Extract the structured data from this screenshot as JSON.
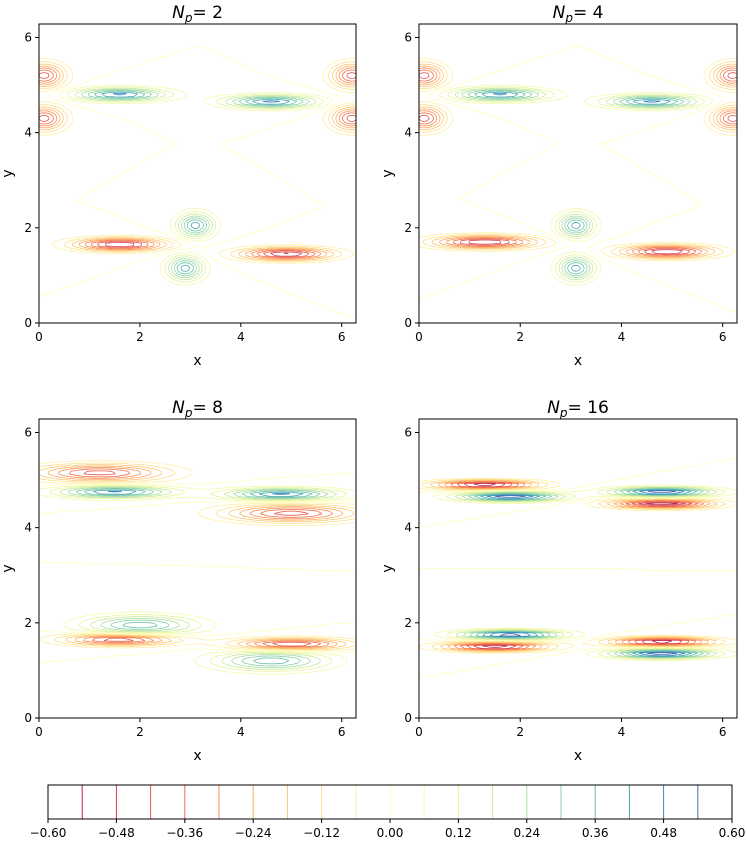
{
  "figure": {
    "colorbar": {
      "ticks": [
        "−0.60",
        "−0.48",
        "−0.36",
        "−0.24",
        "−0.12",
        "0.00",
        "0.12",
        "0.24",
        "0.36",
        "0.48",
        "0.60"
      ],
      "levels": [
        -0.54,
        -0.48,
        -0.42,
        -0.36,
        -0.3,
        -0.24,
        -0.18,
        -0.12,
        -0.06,
        0.0,
        0.06,
        0.12,
        0.18,
        0.24,
        0.3,
        0.36,
        0.42,
        0.48,
        0.54
      ],
      "colormap": "Spectral",
      "range": [
        -0.6,
        0.6
      ]
    }
  },
  "chart_data": [
    {
      "type": "contour",
      "title_base": "N",
      "title_sub": "p",
      "title_value": "= 2",
      "xlabel": "x",
      "ylabel": "y",
      "xlim": [
        0,
        6.283
      ],
      "ylim": [
        0,
        6.283
      ],
      "xticks": [
        "0",
        "2",
        "4",
        "6"
      ],
      "yticks": [
        "0",
        "2",
        "4",
        "6"
      ],
      "features": [
        {
          "x": 1.6,
          "y": 1.65,
          "amp": -0.55,
          "sx": 0.9,
          "sy": 0.13
        },
        {
          "x": 4.9,
          "y": 1.45,
          "amp": -0.55,
          "sx": 0.9,
          "sy": 0.13
        },
        {
          "x": 3.1,
          "y": 2.05,
          "amp": 0.45,
          "sx": 0.35,
          "sy": 0.25
        },
        {
          "x": 2.9,
          "y": 1.15,
          "amp": 0.45,
          "sx": 0.35,
          "sy": 0.25
        },
        {
          "x": 1.6,
          "y": 4.8,
          "amp": 0.5,
          "sx": 0.9,
          "sy": 0.13
        },
        {
          "x": 4.6,
          "y": 4.65,
          "amp": 0.5,
          "sx": 0.9,
          "sy": 0.13
        },
        {
          "x": 0.1,
          "y": 5.2,
          "amp": -0.45,
          "sx": 0.4,
          "sy": 0.25
        },
        {
          "x": 0.1,
          "y": 4.3,
          "amp": -0.45,
          "sx": 0.4,
          "sy": 0.25
        },
        {
          "x": 6.2,
          "y": 5.2,
          "amp": -0.45,
          "sx": 0.4,
          "sy": 0.25
        },
        {
          "x": 6.2,
          "y": 4.3,
          "amp": -0.45,
          "sx": 0.4,
          "sy": 0.25
        }
      ]
    },
    {
      "type": "contour",
      "title_base": "N",
      "title_sub": "p",
      "title_value": "= 4",
      "xlabel": "x",
      "ylabel": "y",
      "xlim": [
        0,
        6.283
      ],
      "ylim": [
        0,
        6.283
      ],
      "xticks": [
        "0",
        "2",
        "4",
        "6"
      ],
      "yticks": [
        "0",
        "2",
        "4",
        "6"
      ],
      "features": [
        {
          "x": 1.3,
          "y": 1.7,
          "amp": -0.55,
          "sx": 1.0,
          "sy": 0.13
        },
        {
          "x": 4.9,
          "y": 1.5,
          "amp": -0.55,
          "sx": 0.9,
          "sy": 0.13
        },
        {
          "x": 3.1,
          "y": 2.05,
          "amp": 0.45,
          "sx": 0.35,
          "sy": 0.25
        },
        {
          "x": 3.1,
          "y": 1.15,
          "amp": 0.45,
          "sx": 0.35,
          "sy": 0.25
        },
        {
          "x": 1.6,
          "y": 4.8,
          "amp": 0.5,
          "sx": 0.9,
          "sy": 0.13
        },
        {
          "x": 4.6,
          "y": 4.65,
          "amp": 0.5,
          "sx": 0.9,
          "sy": 0.13
        },
        {
          "x": 0.1,
          "y": 5.2,
          "amp": -0.45,
          "sx": 0.4,
          "sy": 0.25
        },
        {
          "x": 0.1,
          "y": 4.3,
          "amp": -0.45,
          "sx": 0.4,
          "sy": 0.25
        },
        {
          "x": 6.2,
          "y": 5.2,
          "amp": -0.45,
          "sx": 0.4,
          "sy": 0.25
        },
        {
          "x": 6.2,
          "y": 4.3,
          "amp": -0.45,
          "sx": 0.4,
          "sy": 0.25
        }
      ]
    },
    {
      "type": "contour",
      "title_base": "N",
      "title_sub": "p",
      "title_value": "= 8",
      "xlabel": "x",
      "ylabel": "y",
      "xlim": [
        0,
        6.283
      ],
      "ylim": [
        0,
        6.283
      ],
      "xticks": [
        "0",
        "2",
        "4",
        "6"
      ],
      "yticks": [
        "0",
        "2",
        "4",
        "6"
      ],
      "features": [
        {
          "x": 1.6,
          "y": 1.65,
          "amp": -0.5,
          "sx": 1.1,
          "sy": 0.12
        },
        {
          "x": 5.0,
          "y": 1.55,
          "amp": -0.5,
          "sx": 1.1,
          "sy": 0.12
        },
        {
          "x": 2.0,
          "y": 1.95,
          "amp": 0.4,
          "sx": 1.1,
          "sy": 0.2
        },
        {
          "x": 4.6,
          "y": 1.2,
          "amp": 0.4,
          "sx": 1.1,
          "sy": 0.2
        },
        {
          "x": 1.5,
          "y": 4.75,
          "amp": 0.5,
          "sx": 1.1,
          "sy": 0.12
        },
        {
          "x": 4.8,
          "y": 4.7,
          "amp": 0.5,
          "sx": 1.1,
          "sy": 0.12
        },
        {
          "x": 1.2,
          "y": 5.15,
          "amp": -0.45,
          "sx": 1.3,
          "sy": 0.18
        },
        {
          "x": 5.0,
          "y": 4.3,
          "amp": -0.45,
          "sx": 1.3,
          "sy": 0.18
        }
      ]
    },
    {
      "type": "contour",
      "title_base": "N",
      "title_sub": "p",
      "title_value": "= 16",
      "xlabel": "x",
      "ylabel": "y",
      "xlim": [
        0,
        6.283
      ],
      "ylim": [
        0,
        6.283
      ],
      "xticks": [
        "0",
        "2",
        "4",
        "6"
      ],
      "yticks": [
        "0",
        "2",
        "4",
        "6"
      ],
      "features": [
        {
          "x": 1.5,
          "y": 1.5,
          "amp": -0.6,
          "sx": 1.0,
          "sy": 0.09
        },
        {
          "x": 1.8,
          "y": 1.75,
          "amp": 0.6,
          "sx": 1.0,
          "sy": 0.09
        },
        {
          "x": 4.8,
          "y": 1.6,
          "amp": -0.6,
          "sx": 1.0,
          "sy": 0.09
        },
        {
          "x": 4.8,
          "y": 1.35,
          "amp": 0.6,
          "sx": 1.0,
          "sy": 0.09
        },
        {
          "x": 1.3,
          "y": 4.9,
          "amp": -0.6,
          "sx": 1.0,
          "sy": 0.09
        },
        {
          "x": 1.8,
          "y": 4.65,
          "amp": 0.6,
          "sx": 1.0,
          "sy": 0.09
        },
        {
          "x": 4.8,
          "y": 4.75,
          "amp": 0.6,
          "sx": 1.0,
          "sy": 0.09
        },
        {
          "x": 4.8,
          "y": 4.5,
          "amp": -0.6,
          "sx": 1.0,
          "sy": 0.09
        }
      ]
    }
  ]
}
